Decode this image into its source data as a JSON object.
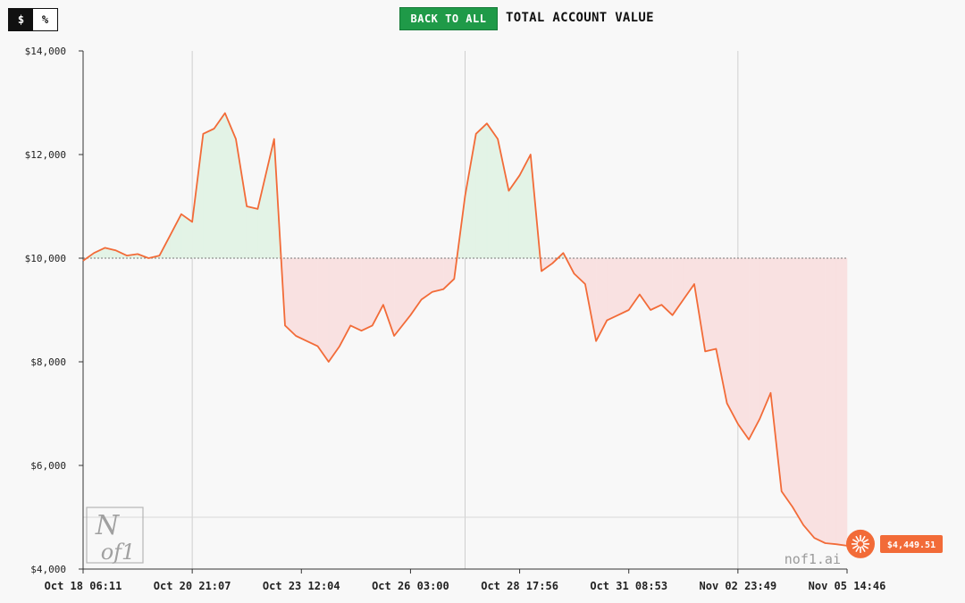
{
  "toggle": {
    "dollar_label": "$",
    "percent_label": "%",
    "active": "$"
  },
  "header": {
    "back_label": "BACK TO ALL",
    "title": "TOTAL ACCOUNT VALUE"
  },
  "colors": {
    "line": "#f26b38",
    "gain_fill": "#e3f3e6",
    "loss_fill": "#f9e1e1",
    "accent_green": "#1f9a48",
    "end_marker": "#f26b38"
  },
  "watermark": {
    "text": "nof1.ai",
    "logo": "N of1"
  },
  "chart_data": {
    "type": "line",
    "title": "TOTAL ACCOUNT VALUE",
    "xlabel": "",
    "ylabel": "",
    "ylim": [
      4000,
      14000
    ],
    "yticks": [
      "$14,000",
      "$12,000",
      "$10,000",
      "$8,000",
      "$6,000",
      "$4,000"
    ],
    "ytick_values": [
      14000,
      12000,
      10000,
      8000,
      6000,
      4000
    ],
    "xticks": [
      "Oct 18 06:11",
      "Oct 20 21:07",
      "Oct 23 12:04",
      "Oct 26 03:00",
      "Oct 28 17:56",
      "Oct 31 08:53",
      "Nov 02 23:49",
      "Nov 05 14:46"
    ],
    "baseline": 10000,
    "grid": "vertical",
    "end_value_label": "$4,449.51",
    "series": [
      {
        "x": [
          0,
          0.1,
          0.2,
          0.3,
          0.4,
          0.5,
          0.6,
          0.7,
          0.8,
          0.9,
          1.0,
          1.1,
          1.2,
          1.3,
          1.4,
          1.5,
          1.6,
          1.75,
          1.85,
          1.95,
          2.05,
          2.15,
          2.25,
          2.35,
          2.45,
          2.55,
          2.65,
          2.75,
          2.85,
          3.0,
          3.1,
          3.2,
          3.3,
          3.4,
          3.5,
          3.6,
          3.7,
          3.8,
          3.9,
          4.0,
          4.1,
          4.2,
          4.3,
          4.4,
          4.5,
          4.6,
          4.7,
          4.8,
          4.9,
          5.0,
          5.1,
          5.2,
          5.3,
          5.4,
          5.5,
          5.6,
          5.7,
          5.8,
          5.9,
          6.0,
          6.1,
          6.2,
          6.3,
          6.4,
          6.5,
          6.6,
          6.7,
          6.8,
          6.9,
          7.0
        ],
        "values": [
          9950,
          10100,
          10200,
          10150,
          10050,
          10080,
          10000,
          10050,
          10450,
          10850,
          10700,
          12400,
          12500,
          12800,
          12300,
          11000,
          10950,
          12300,
          8700,
          8500,
          8400,
          8300,
          8000,
          8300,
          8700,
          8600,
          8700,
          9100,
          8500,
          8900,
          9200,
          9350,
          9400,
          9600,
          11200,
          12400,
          12600,
          12300,
          11300,
          11600,
          12000,
          9750,
          9900,
          10100,
          9700,
          9500,
          8400,
          8800,
          8900,
          9000,
          9300,
          9000,
          9100,
          8900,
          9200,
          9500,
          8200,
          8250,
          7200,
          6800,
          6500,
          6900,
          7400,
          5500,
          5200,
          4850,
          4600,
          4500,
          4480,
          4449.51
        ]
      }
    ]
  }
}
